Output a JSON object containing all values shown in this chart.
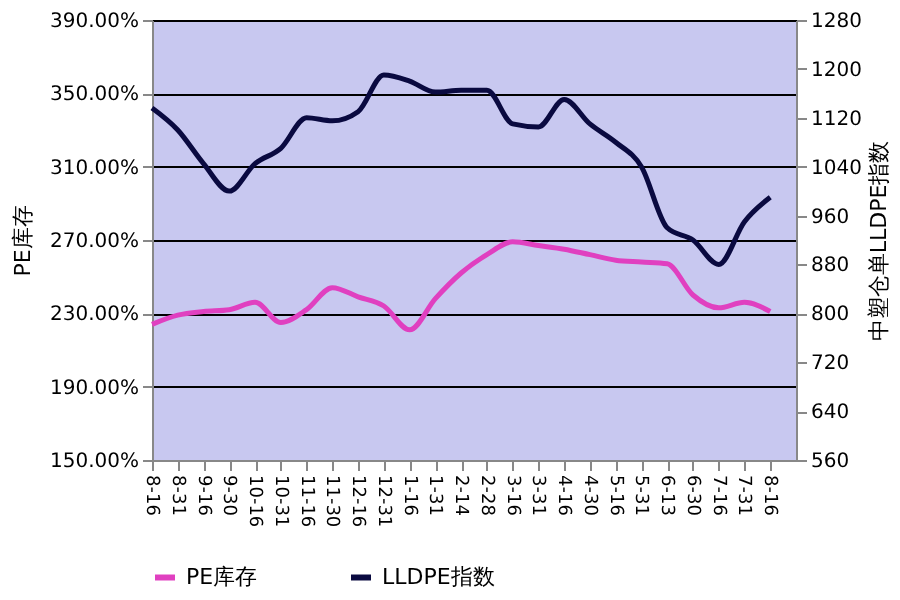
{
  "chart_data": {
    "type": "line",
    "categories": [
      "8-16",
      "8-31",
      "9-16",
      "9-30",
      "10-16",
      "10-31",
      "11-16",
      "11-30",
      "12-16",
      "12-31",
      "1-16",
      "1-31",
      "2-14",
      "2-28",
      "3-16",
      "3-31",
      "4-16",
      "4-30",
      "5-16",
      "5-31",
      "6-13",
      "6-30",
      "7-16",
      "7-31",
      "8-16"
    ],
    "series": [
      {
        "name": "PE库存",
        "color": "#e040c0",
        "values": [
          224,
          229,
          231,
          232,
          236,
          225,
          232,
          244,
          239,
          234,
          221,
          238,
          252,
          262,
          269,
          267,
          265,
          262,
          259,
          258,
          257,
          240,
          233,
          236,
          231
        ]
      },
      {
        "name": "LLDPE指数",
        "color": "#0a0a40",
        "axis": "y2",
        "values": [
          1136,
          1100,
          1045,
          1000,
          1045,
          1070,
          1120,
          1115,
          1130,
          1190,
          1180,
          1162,
          1165,
          1165,
          1110,
          1105,
          1150,
          1110,
          1080,
          1040,
          940,
          920,
          880,
          950,
          990
        ]
      }
    ],
    "ylabel": "PE库存",
    "y2label": "中塑仓单LLDPE指数",
    "ylim": [
      150,
      390
    ],
    "yticks": [
      {
        "value": 150,
        "label": "150.00%"
      },
      {
        "value": 190,
        "label": "190.00%"
      },
      {
        "value": 230,
        "label": "230.00%"
      },
      {
        "value": 270,
        "label": "270.00%"
      },
      {
        "value": 310,
        "label": "310.00%"
      },
      {
        "value": 350,
        "label": "350.00%"
      },
      {
        "value": 390,
        "label": "390.00%"
      }
    ],
    "y2lim": [
      560,
      1280
    ],
    "y2ticks": [
      560,
      640,
      720,
      800,
      880,
      960,
      1040,
      1120,
      1200,
      1280
    ],
    "grid": "y",
    "legend": "bottom",
    "marker": "none",
    "line_style": "solid"
  }
}
